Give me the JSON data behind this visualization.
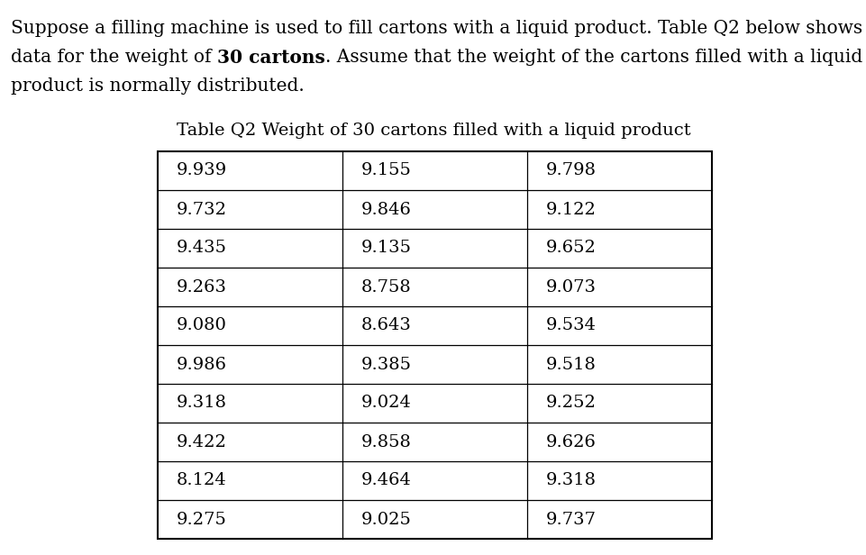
{
  "line1": "Suppose a filling machine is used to fill cartons with a liquid product. Table Q2 below shows",
  "line2_pre": "data for the weight of ",
  "line2_bold": "30 cartons",
  "line2_post": ". Assume that the weight of the cartons filled with a liquid",
  "line3": "product is normally distributed.",
  "table_title": "Table Q2 Weight of 30 cartons filled with a liquid product",
  "table_data": [
    [
      "9.939",
      "9.155",
      "9.798"
    ],
    [
      "9.732",
      "9.846",
      "9.122"
    ],
    [
      "9.435",
      "9.135",
      "9.652"
    ],
    [
      "9.263",
      "8.758",
      "9.073"
    ],
    [
      "9.080",
      "8.643",
      "9.534"
    ],
    [
      "9.986",
      "9.385",
      "9.518"
    ],
    [
      "9.318",
      "9.024",
      "9.252"
    ],
    [
      "9.422",
      "9.858",
      "9.626"
    ],
    [
      "8.124",
      "9.464",
      "9.318"
    ],
    [
      "9.275",
      "9.025",
      "9.737"
    ]
  ],
  "background_color": "#ffffff",
  "text_color": "#000000",
  "font_size_para": 14.5,
  "font_size_title": 14.0,
  "font_size_table": 14.0,
  "font_family": "DejaVu Serif",
  "fig_width": 9.62,
  "fig_height": 6.16,
  "dpi": 100
}
